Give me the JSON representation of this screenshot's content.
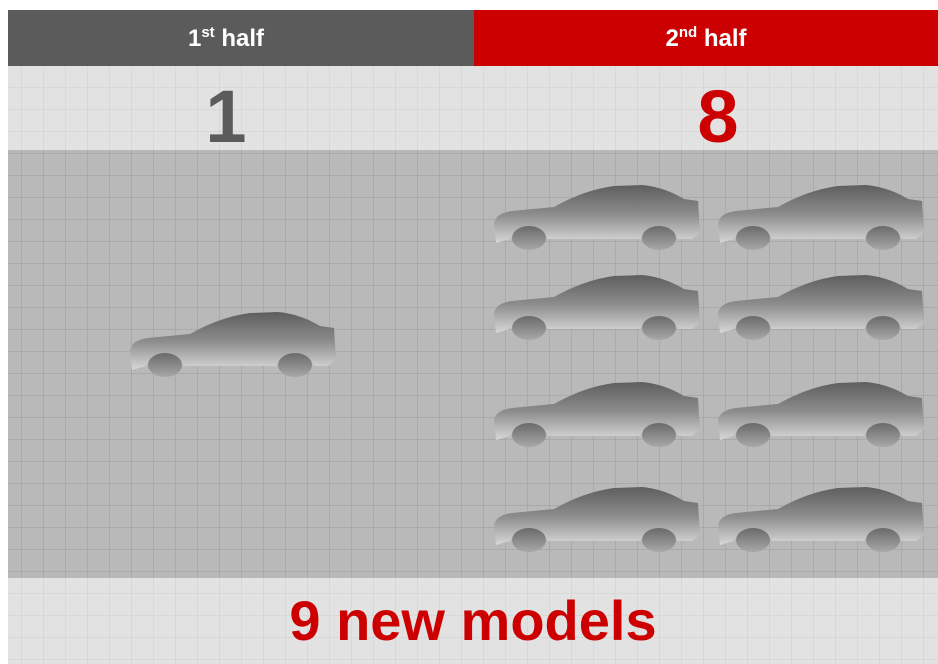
{
  "columns": [
    {
      "ordinal": "1",
      "ordinal_suffix": "st",
      "label": "half",
      "count": 1
    },
    {
      "ordinal": "2",
      "ordinal_suffix": "nd",
      "label": "half",
      "count": 8
    }
  ],
  "footer": "9 new models"
}
